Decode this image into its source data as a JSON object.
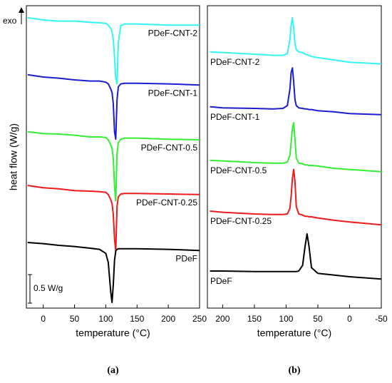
{
  "chart_data": [
    {
      "type": "line",
      "panel_label": "(a)",
      "xlabel": "temperature (°C)",
      "ylabel": "heat flow (W/g)",
      "annotation": "exo",
      "scale_bar": {
        "value": 0.5,
        "label": "0.5 W/g"
      },
      "xlim": [
        -27,
        250
      ],
      "ylim": [
        0,
        5.3
      ],
      "xticks": [
        0,
        50,
        100,
        150,
        200,
        250
      ],
      "x": [
        -25,
        0,
        25,
        50,
        75,
        90,
        100,
        104,
        108,
        110,
        112,
        114,
        116,
        118,
        120,
        124,
        130,
        150,
        200,
        250
      ],
      "series": [
        {
          "name": "PDeF-CNT-2",
          "color": "#33f5f5",
          "values": [
            5.09,
            5.05,
            5.03,
            5.03,
            5.01,
            5.0,
            4.99,
            4.96,
            4.9,
            4.84,
            4.71,
            4.4,
            4.03,
            3.93,
            4.65,
            4.95,
            4.98,
            4.98,
            4.96,
            4.96
          ]
        },
        {
          "name": "PDeF-CNT-1",
          "color": "#1c1cd0",
          "values": [
            4.09,
            4.05,
            4.03,
            4.0,
            3.98,
            3.98,
            3.96,
            3.93,
            3.84,
            3.78,
            3.59,
            3.09,
            2.96,
            3.65,
            3.88,
            3.93,
            3.94,
            3.94,
            3.93,
            3.91
          ]
        },
        {
          "name": "PDeF-CNT-0.5",
          "color": "#33ee33",
          "values": [
            3.09,
            3.06,
            3.05,
            3.03,
            3.0,
            3.0,
            2.99,
            2.95,
            2.86,
            2.8,
            2.63,
            2.13,
            1.88,
            2.71,
            2.9,
            2.96,
            2.98,
            2.98,
            2.96,
            2.95
          ]
        },
        {
          "name": "PDeF-CNT-0.25",
          "color": "#ee1a1a",
          "values": [
            2.15,
            2.11,
            2.09,
            2.06,
            2.05,
            2.04,
            2.03,
            1.99,
            1.9,
            1.83,
            1.65,
            1.21,
            1.0,
            1.78,
            1.95,
            2.0,
            2.01,
            2.01,
            2.0,
            1.99
          ]
        },
        {
          "name": "PDeF",
          "color": "#000000",
          "values": [
            1.15,
            1.13,
            1.1,
            1.08,
            1.05,
            1.03,
            0.96,
            0.8,
            0.28,
            0.1,
            0.4,
            0.84,
            1.0,
            1.03,
            1.04,
            1.04,
            1.04,
            1.04,
            1.03,
            1.01
          ]
        }
      ]
    },
    {
      "type": "line",
      "panel_label": "(b)",
      "xlabel": "temperature (°C)",
      "xlim": [
        224,
        -50
      ],
      "ylim": [
        0,
        5.3
      ],
      "xticks": [
        200,
        150,
        100,
        50,
        0,
        -50
      ],
      "x": [
        220,
        200,
        150,
        120,
        105,
        98,
        94,
        92,
        90,
        88,
        86,
        84,
        80,
        74,
        70,
        67,
        64,
        60,
        50,
        25,
        0,
        -50
      ],
      "series": [
        {
          "name": "PDeF-CNT-2",
          "color": "#33f5f5",
          "values": [
            4.49,
            4.48,
            4.45,
            4.43,
            4.43,
            4.46,
            4.71,
            4.96,
            5.09,
            4.9,
            4.63,
            4.53,
            4.49,
            4.48,
            4.45,
            4.44,
            4.43,
            4.41,
            4.39,
            4.35,
            4.31,
            4.28
          ]
        },
        {
          "name": "PDeF-CNT-1",
          "color": "#1c1cd0",
          "values": [
            3.53,
            3.51,
            3.5,
            3.49,
            3.5,
            3.55,
            3.84,
            4.13,
            4.21,
            3.96,
            3.65,
            3.55,
            3.51,
            3.5,
            3.49,
            3.49,
            3.48,
            3.48,
            3.46,
            3.44,
            3.41,
            3.39
          ]
        },
        {
          "name": "PDeF-CNT-0.5",
          "color": "#33ee33",
          "values": [
            2.59,
            2.58,
            2.55,
            2.54,
            2.54,
            2.56,
            2.68,
            2.9,
            3.15,
            3.25,
            2.96,
            2.63,
            2.54,
            2.53,
            2.51,
            2.51,
            2.5,
            2.5,
            2.49,
            2.45,
            2.43,
            2.39
          ]
        },
        {
          "name": "PDeF-CNT-0.25",
          "color": "#ee1a1a",
          "values": [
            1.7,
            1.68,
            1.65,
            1.64,
            1.64,
            1.65,
            1.75,
            1.96,
            2.28,
            2.43,
            2.21,
            1.78,
            1.65,
            1.63,
            1.61,
            1.61,
            1.6,
            1.6,
            1.58,
            1.54,
            1.51,
            1.46
          ]
        },
        {
          "name": "PDeF",
          "color": "#000000",
          "values": [
            0.65,
            0.65,
            0.64,
            0.64,
            0.64,
            0.64,
            0.64,
            0.64,
            0.64,
            0.64,
            0.64,
            0.64,
            0.65,
            0.75,
            1.09,
            1.3,
            1.09,
            0.71,
            0.61,
            0.58,
            0.55,
            0.51
          ]
        }
      ]
    }
  ]
}
